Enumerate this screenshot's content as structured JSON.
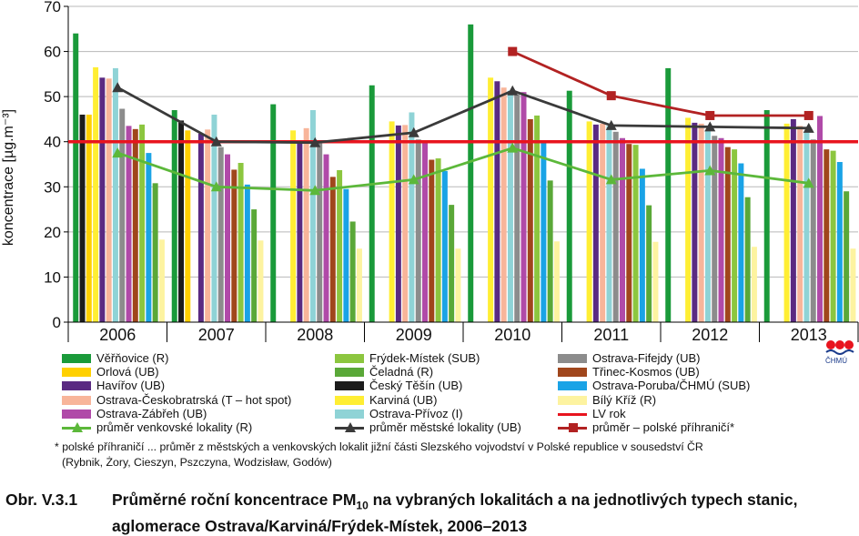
{
  "chart_data": {
    "type": "bar",
    "ylabel": "koncentrace [µg.m⁻³]",
    "ylim": [
      0,
      70
    ],
    "yticks": [
      0,
      10,
      20,
      30,
      40,
      50,
      60,
      70
    ],
    "grid": "horizontal",
    "categories": [
      "2006",
      "2007",
      "2008",
      "2009",
      "2010",
      "2011",
      "2012",
      "2013"
    ],
    "bar_series": [
      {
        "name": "Věřňovice (R)",
        "color": "#1a9a3a",
        "values": [
          64,
          47,
          48.3,
          52.5,
          66,
          51.3,
          56.3,
          47
        ]
      },
      {
        "name": "Český Těšín (UB)",
        "color": "#1c1c1c",
        "values": [
          46,
          44.7,
          null,
          null,
          null,
          null,
          null,
          null
        ]
      },
      {
        "name": "Orlová (UB)",
        "color": "#ffd000",
        "values": [
          46,
          42.5,
          null,
          null,
          null,
          null,
          null,
          null
        ]
      },
      {
        "name": "Karviná (UB)",
        "color": "#ffee33",
        "values": [
          56.5,
          null,
          42.5,
          44.5,
          54.2,
          44.5,
          45.3,
          44
        ]
      },
      {
        "name": "Havířov (UB)",
        "color": "#5a2a82",
        "values": [
          54.2,
          41.8,
          40.3,
          43.6,
          53.4,
          43.8,
          44.2,
          45
        ]
      },
      {
        "name": "Ostrava-Českobratrská (T – hot spot)",
        "color": "#f8b59a",
        "values": [
          54,
          42.7,
          43,
          43.7,
          52,
          44,
          44,
          43.5
        ]
      },
      {
        "name": "Ostrava-Přívoz (I)",
        "color": "#8fd3d6",
        "values": [
          56.3,
          46,
          47,
          46.5,
          51.3,
          43.5,
          42.5,
          42
        ]
      },
      {
        "name": "Ostrava-Fifejdy (UB)",
        "color": "#8c8c8c",
        "values": [
          47.3,
          38.8,
          40.3,
          40.5,
          50.5,
          42.2,
          41.3,
          40.5
        ]
      },
      {
        "name": "Ostrava-Zábřeh (UB)",
        "color": "#b04aa8",
        "values": [
          43.5,
          37.2,
          37.2,
          40,
          51,
          40.8,
          40.8,
          45.7
        ]
      },
      {
        "name": "Třinec-Kosmos (UB)",
        "color": "#a0461c",
        "values": [
          42.8,
          33.8,
          32.2,
          36,
          45,
          39.5,
          38.8,
          38.3
        ]
      },
      {
        "name": "Frýdek-Místek (SUB)",
        "color": "#8cc63f",
        "values": [
          43.8,
          35.3,
          33.7,
          36.3,
          45.8,
          39.3,
          38.3,
          38
        ]
      },
      {
        "name": "Ostrava-Poruba/ČHMÚ (SUB)",
        "color": "#1aa3e6",
        "values": [
          37.5,
          30.5,
          29.5,
          33.5,
          39.7,
          34,
          35.2,
          35.5
        ]
      },
      {
        "name": "Čeladná (R)",
        "color": "#5aa838",
        "values": [
          30.8,
          25,
          22.3,
          26,
          31.4,
          25.9,
          27.7,
          29
        ]
      },
      {
        "name": "Bílý Kříž (R)",
        "color": "#fdf3a0",
        "values": [
          18.3,
          18.1,
          16.3,
          16.3,
          17.9,
          17.8,
          16.7,
          16.3
        ]
      }
    ],
    "line_series": [
      {
        "name": "průměr venkovské lokality (R)",
        "color": "#5cb83a",
        "marker": "triangle",
        "values": [
          37.5,
          30,
          29.2,
          31.6,
          38.6,
          31.6,
          33.6,
          30.8
        ]
      },
      {
        "name": "průměr městské lokality (UB)",
        "color": "#3a3a3a",
        "marker": "triangle",
        "values": [
          52,
          40,
          39.8,
          42,
          51.3,
          43.6,
          43.3,
          43
        ]
      },
      {
        "name": "průměr – polské příhraničí*",
        "color": "#b22222",
        "marker": "square",
        "values": [
          null,
          null,
          null,
          null,
          60,
          50.2,
          45.8,
          45.8
        ]
      }
    ],
    "reference_line": {
      "name": "LV rok",
      "value": 40,
      "color": "#e8141e"
    }
  },
  "legend_order": [
    "Věřňovice (R)",
    "Frýdek-Místek (SUB)",
    "Ostrava-Fifejdy (UB)",
    "Orlová (UB)",
    "Čeladná (R)",
    "Třinec-Kosmos (UB)",
    "Havířov (UB)",
    "Český Těšín (UB)",
    "Ostrava-Poruba/ČHMÚ (SUB)",
    "Ostrava-Českobratrská (T – hot spot)",
    "Karviná (UB)",
    "Bílý Kříž (R)",
    "Ostrava-Zábřeh (UB)",
    "Ostrava-Přívoz (I)",
    "LV rok",
    "průměr venkovské lokality (R)",
    "průměr městské lokality (UB)",
    "průměr – polské příhraničí*"
  ],
  "footnote": {
    "line1": "* polské příhraničí ... průměr z městských a venkovských lokalit jižní části Slezského vojvodství v Polské republice v sousedství ČR",
    "line2": "(Rybnik, Żory, Cieszyn, Pszczyna, Wodzisław, Godów)"
  },
  "caption": {
    "number": "Obr. V.3.1",
    "text_before_sub": "Průměrné roční koncentrace PM",
    "subscript": "10",
    "text_after_sub": " na vybraných lokalitách a na jednotlivých typech stanic, aglomerace Ostrava/Karviná/Frýdek-Místek, 2006–2013"
  },
  "logo": {
    "text": "ČHMÚ",
    "colors": [
      "#e8141e",
      "#1a3a8a"
    ]
  }
}
